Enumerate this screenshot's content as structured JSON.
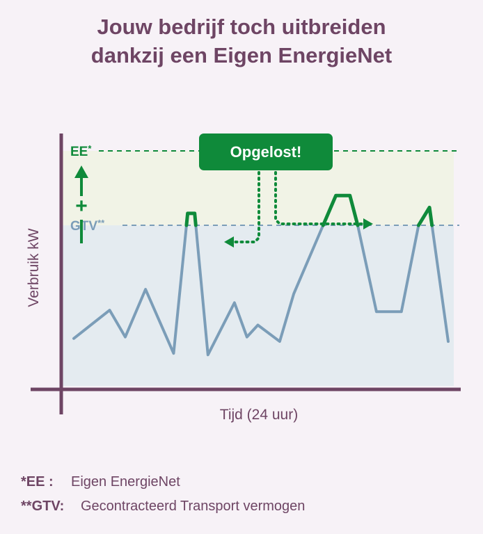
{
  "title_lines": [
    "Jouw bedrijf toch uitbreiden",
    "dankzij een Eigen EnergieNet"
  ],
  "colors": {
    "purple": "#6e4564",
    "green": "#0f8a3a",
    "blue_line": "#7b9db8",
    "zone_upper": "#f1f3e6",
    "zone_lower": "#e4ebf0"
  },
  "chart_data": {
    "type": "line",
    "xlabel": "Tijd (24 uur)",
    "ylabel": "Verbruik kW",
    "thresholds": [
      {
        "label": "EE",
        "mark": "*",
        "value": 100,
        "color": "#0f8a3a",
        "style": "dashed"
      },
      {
        "label": "GTV",
        "mark": "**",
        "value": 50,
        "color": "#7b9db8",
        "style": "dashed"
      }
    ],
    "ylim": [
      -56,
      100
    ],
    "xlim": [
      0,
      24
    ],
    "series": [
      {
        "x": [
          0.0,
          2.3,
          3.3,
          4.6,
          6.4,
          7.3,
          7.75,
          8.6,
          10.3,
          11.1,
          11.8,
          13.2,
          14.1,
          16.8,
          17.7,
          18.2,
          19.4,
          21.0,
          22.1,
          22.8,
          24.0
        ],
        "y": [
          -26,
          -7,
          -25,
          7,
          -36,
          58,
          58,
          -37,
          -2,
          -25,
          -17,
          -28,
          4,
          70,
          70,
          50,
          -8,
          -8,
          50,
          62,
          -28
        ]
      }
    ],
    "annotation": {
      "text": "Opgelost!"
    },
    "arrow_labels": [
      "+",
      "–"
    ]
  },
  "legend": [
    {
      "key": "*EE :",
      "text": "Eigen EnergieNet"
    },
    {
      "key": "**GTV:",
      "text": "Gecontracteerd Transport vermogen"
    }
  ]
}
